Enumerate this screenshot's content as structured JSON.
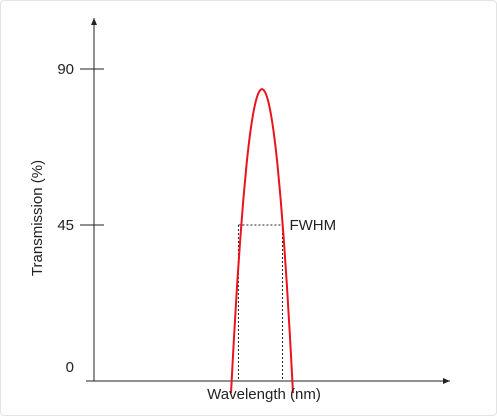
{
  "chart_data": {
    "type": "line",
    "title": "",
    "xlabel": "Wavelength (nm)",
    "ylabel": "Transmission (%)",
    "ylim": [
      0,
      90
    ],
    "yticks": [
      {
        "value": 0,
        "label": "0"
      },
      {
        "value": 45,
        "label": "45"
      },
      {
        "value": 90,
        "label": "90"
      }
    ],
    "series": [
      {
        "color": "#e8141e",
        "x": [
          0.0,
          0.05,
          0.1,
          0.15,
          0.2,
          0.25,
          0.3,
          0.35,
          0.4,
          0.45,
          0.5,
          0.55,
          0.6,
          0.65,
          0.7,
          0.75,
          0.8,
          0.85,
          0.9,
          0.95,
          1.0
        ],
        "y": [
          -3.5,
          13.1,
          28.1,
          41.2,
          52.6,
          62.3,
          70.2,
          76.3,
          80.7,
          83.3,
          84.2,
          83.3,
          80.7,
          76.3,
          70.2,
          62.3,
          52.6,
          41.2,
          28.1,
          13.1,
          -3.5
        ]
      }
    ],
    "annotations": [
      {
        "text": "FWHM",
        "level": 45,
        "x_start": 0.12,
        "x_end": 0.83
      }
    ],
    "grid": false
  }
}
